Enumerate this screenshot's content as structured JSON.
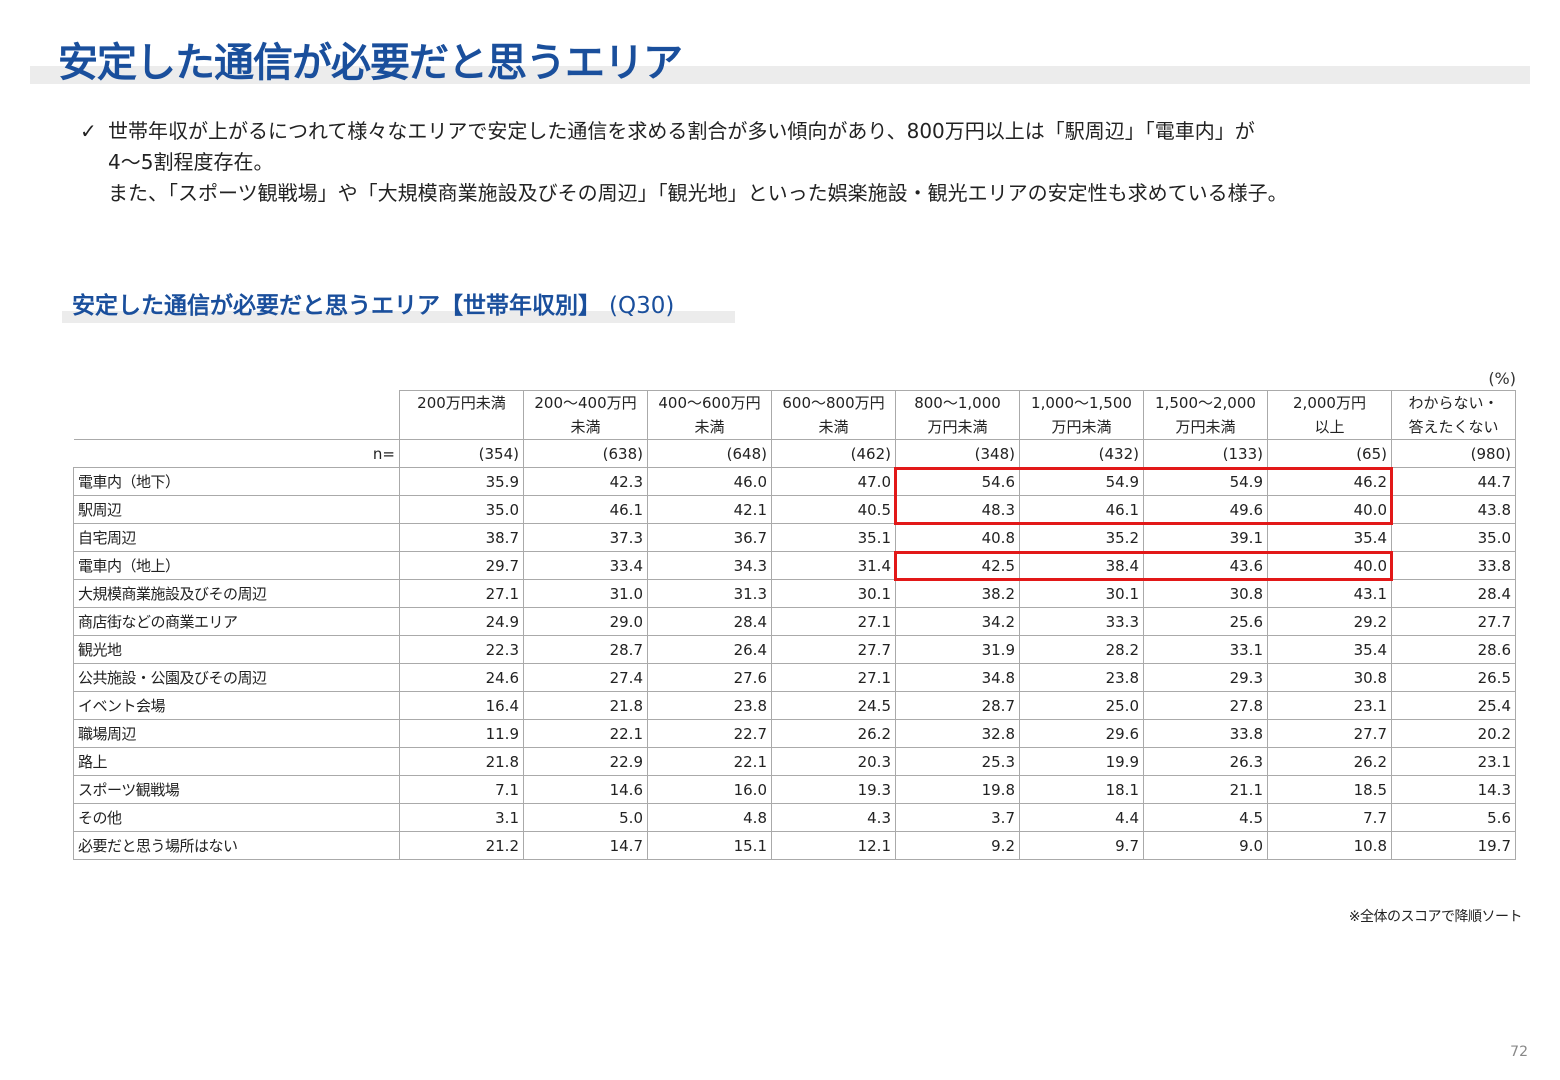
{
  "page": {
    "title": "安定した通信が必要だと思うエリア",
    "page_number": "72"
  },
  "summary": {
    "check_icon": "check-mark",
    "lines": [
      "世帯年収が上がるにつれて様々なエリアで安定した通信を求める割合が多い傾向があり、800万円以上は「駅周辺」「電車内」が",
      "4～5割程度存在。",
      "また、「スポーツ観戦場」や「大規模商業施設及びその周辺」「観光地」といった娯楽施設・観光エリアの安定性も求めている様子。"
    ]
  },
  "section": {
    "title": "安定した通信が必要だと思うエリア【世帯年収別】",
    "question": "(Q30)"
  },
  "table": {
    "unit": "(%)",
    "n_label": "n=",
    "columns": [
      {
        "line1": "200万円未満",
        "line2": ""
      },
      {
        "line1": "200～400万円",
        "line2": "未満"
      },
      {
        "line1": "400～600万円",
        "line2": "未満"
      },
      {
        "line1": "600～800万円",
        "line2": "未満"
      },
      {
        "line1": "800～1,000",
        "line2": "万円未満"
      },
      {
        "line1": "1,000～1,500",
        "line2": "万円未満"
      },
      {
        "line1": "1,500～2,000",
        "line2": "万円未満"
      },
      {
        "line1": "2,000万円",
        "line2": "以上"
      },
      {
        "line1": "わからない・",
        "line2": "答えたくない"
      }
    ],
    "n_values": [
      "(354)",
      "(638)",
      "(648)",
      "(462)",
      "(348)",
      "(432)",
      "(133)",
      "(65)",
      "(980)"
    ],
    "rows": [
      {
        "label": "電車内（地下）",
        "values": [
          "35.9",
          "42.3",
          "46.0",
          "47.0",
          "54.6",
          "54.9",
          "54.9",
          "46.2",
          "44.7"
        ]
      },
      {
        "label": "駅周辺",
        "values": [
          "35.0",
          "46.1",
          "42.1",
          "40.5",
          "48.3",
          "46.1",
          "49.6",
          "40.0",
          "43.8"
        ]
      },
      {
        "label": "自宅周辺",
        "values": [
          "38.7",
          "37.3",
          "36.7",
          "35.1",
          "40.8",
          "35.2",
          "39.1",
          "35.4",
          "35.0"
        ]
      },
      {
        "label": "電車内（地上）",
        "values": [
          "29.7",
          "33.4",
          "34.3",
          "31.4",
          "42.5",
          "38.4",
          "43.6",
          "40.0",
          "33.8"
        ]
      },
      {
        "label": "大規模商業施設及びその周辺",
        "values": [
          "27.1",
          "31.0",
          "31.3",
          "30.1",
          "38.2",
          "30.1",
          "30.8",
          "43.1",
          "28.4"
        ]
      },
      {
        "label": "商店街などの商業エリア",
        "values": [
          "24.9",
          "29.0",
          "28.4",
          "27.1",
          "34.2",
          "33.3",
          "25.6",
          "29.2",
          "27.7"
        ]
      },
      {
        "label": "観光地",
        "values": [
          "22.3",
          "28.7",
          "26.4",
          "27.7",
          "31.9",
          "28.2",
          "33.1",
          "35.4",
          "28.6"
        ]
      },
      {
        "label": "公共施設・公園及びその周辺",
        "values": [
          "24.6",
          "27.4",
          "27.6",
          "27.1",
          "34.8",
          "23.8",
          "29.3",
          "30.8",
          "26.5"
        ]
      },
      {
        "label": "イベント会場",
        "values": [
          "16.4",
          "21.8",
          "23.8",
          "24.5",
          "28.7",
          "25.0",
          "27.8",
          "23.1",
          "25.4"
        ]
      },
      {
        "label": "職場周辺",
        "values": [
          "11.9",
          "22.1",
          "22.7",
          "26.2",
          "32.8",
          "29.6",
          "33.8",
          "27.7",
          "20.2"
        ]
      },
      {
        "label": "路上",
        "values": [
          "21.8",
          "22.9",
          "22.1",
          "20.3",
          "25.3",
          "19.9",
          "26.3",
          "26.2",
          "23.1"
        ]
      },
      {
        "label": "スポーツ観戦場",
        "values": [
          "7.1",
          "14.6",
          "16.0",
          "19.3",
          "19.8",
          "18.1",
          "21.1",
          "18.5",
          "14.3"
        ]
      },
      {
        "label": "その他",
        "values": [
          "3.1",
          "5.0",
          "4.8",
          "4.3",
          "3.7",
          "4.4",
          "4.5",
          "7.7",
          "5.6"
        ]
      },
      {
        "label": "必要だと思う場所はない",
        "values": [
          "21.2",
          "14.7",
          "15.1",
          "12.1",
          "9.2",
          "9.7",
          "9.0",
          "10.8",
          "19.7"
        ]
      }
    ],
    "highlight_color": "#e21818",
    "note": "※全体のスコアで降順ソート"
  },
  "colors": {
    "title": "#1a4f9c",
    "band": "#ececec",
    "highlight": "#e21818"
  }
}
